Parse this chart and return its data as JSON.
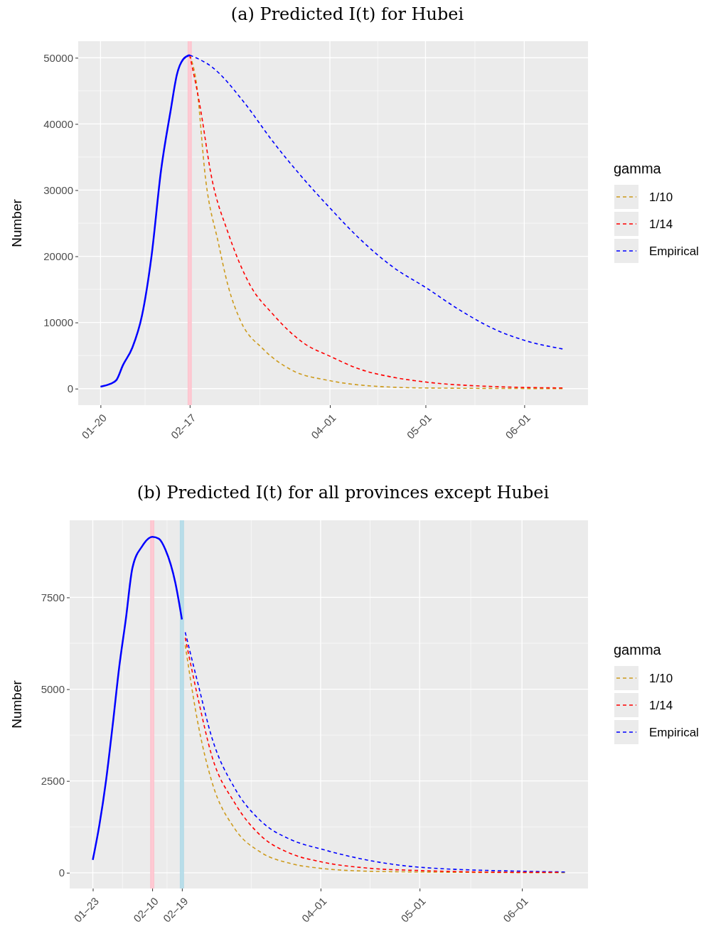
{
  "chart_data": [
    {
      "type": "line",
      "title": "(a) Predicted I(t) for Hubei",
      "ylabel": "Number",
      "legend_title": "gamma",
      "legend": "right",
      "grid": true,
      "marker": "none",
      "xlim": [
        "--01-13",
        "--06-21"
      ],
      "ylim": [
        -2500,
        52500
      ],
      "xticks": [
        {
          "value": "--01-20",
          "label": "01–20"
        },
        {
          "value": "--02-17",
          "label": "02–17"
        },
        {
          "value": "--04-01",
          "label": "04–01"
        },
        {
          "value": "--05-01",
          "label": "05–01"
        },
        {
          "value": "--06-01",
          "label": "06–01"
        }
      ],
      "yticks": [
        0,
        10000,
        20000,
        30000,
        40000,
        50000
      ],
      "ref_lines": [
        {
          "axis": "x",
          "value": "--02-17",
          "label": null,
          "color": "#ffc0cb"
        }
      ],
      "series": [
        {
          "color": "#0000ff",
          "line_style": "solid",
          "x": [
            "--01-20",
            "--01-23",
            "--01-25",
            "--01-27",
            "--01-30",
            "--02-02",
            "--02-05",
            "--02-08",
            "--02-11",
            "--02-13",
            "--02-15",
            "--02-17"
          ],
          "values": [
            300,
            700,
            1300,
            3500,
            6200,
            11000,
            20000,
            33000,
            42000,
            47500,
            49800,
            50400
          ]
        },
        {
          "name": "1/10",
          "color": "#cd9b1d",
          "line_style": "dashed",
          "x": [
            "--02-17",
            "--02-19",
            "--02-22",
            "--02-26",
            "--02-29",
            "--03-04",
            "--03-11",
            "--03-20",
            "--04-01",
            "--04-14",
            "--05-01",
            "--06-13"
          ],
          "values": [
            50400,
            46500,
            31600,
            22000,
            15600,
            10200,
            6000,
            2800,
            1200,
            400,
            100,
            0
          ]
        },
        {
          "name": "1/14",
          "color": "#ff0000",
          "line_style": "dashed",
          "x": [
            "--02-17",
            "--02-20",
            "--02-24",
            "--02-29",
            "--03-07",
            "--03-14",
            "--03-24",
            "--04-01",
            "--04-10",
            "--04-21",
            "--05-01",
            "--05-23",
            "--06-13"
          ],
          "values": [
            50400,
            43300,
            31600,
            23600,
            15600,
            11300,
            6800,
            4900,
            3000,
            1700,
            1000,
            300,
            100
          ]
        },
        {
          "name": "Empirical",
          "color": "#0000ff",
          "line_style": "dashed",
          "x": [
            "--02-17",
            "--02-24",
            "--03-05",
            "--03-14",
            "--03-23",
            "--04-01",
            "--04-10",
            "--04-21",
            "--05-01",
            "--05-12",
            "--05-23",
            "--06-01",
            "--06-13"
          ],
          "values": [
            50400,
            48600,
            43300,
            37400,
            32100,
            27300,
            22800,
            18300,
            15300,
            11800,
            8900,
            7300,
            6000
          ]
        }
      ]
    },
    {
      "type": "line",
      "title": "(b) Predicted I(t) for all provinces except Hubei",
      "ylabel": "Number",
      "legend_title": "gamma",
      "legend": "right",
      "grid": true,
      "marker": "none",
      "xlim": [
        "--01-16",
        "--06-21"
      ],
      "ylim": [
        -430,
        9600
      ],
      "xticks": [
        {
          "value": "--01-23",
          "label": "01–23"
        },
        {
          "value": "--02-10",
          "label": "02–10"
        },
        {
          "value": "--02-19",
          "label": "02–19"
        },
        {
          "value": "--04-01",
          "label": "04–01"
        },
        {
          "value": "--05-01",
          "label": "05–01"
        },
        {
          "value": "--06-01",
          "label": "06–01"
        }
      ],
      "yticks": [
        0,
        2500,
        5000,
        7500
      ],
      "ref_lines": [
        {
          "axis": "x",
          "value": "--02-10",
          "label": null,
          "color": "#ffc0cb"
        },
        {
          "axis": "x",
          "value": "--02-19",
          "label": null,
          "color": "#add8e6"
        }
      ],
      "series": [
        {
          "color": "#0000ff",
          "line_style": "solid",
          "x": [
            "--01-23",
            "--01-25",
            "--01-27",
            "--01-29",
            "--01-31",
            "--02-02",
            "--02-04",
            "--02-07",
            "--02-10",
            "--02-12",
            "--02-14",
            "--02-17",
            "--02-19"
          ],
          "values": [
            350,
            1300,
            2500,
            4000,
            5600,
            6900,
            8300,
            8900,
            9150,
            9100,
            8800,
            7900,
            6900
          ]
        },
        {
          "name": "1/10",
          "color": "#cd9b1d",
          "line_style": "dashed",
          "x": [
            "--02-20",
            "--02-24",
            "--02-28",
            "--03-06",
            "--03-14",
            "--03-23",
            "--04-01",
            "--04-16",
            "--05-01",
            "--06-14"
          ],
          "values": [
            6200,
            4000,
            2500,
            1200,
            550,
            250,
            120,
            40,
            20,
            0
          ]
        },
        {
          "name": "1/14",
          "color": "#ff0000",
          "line_style": "dashed",
          "x": [
            "--02-20",
            "--02-24",
            "--02-28",
            "--03-06",
            "--03-14",
            "--03-23",
            "--04-01",
            "--04-16",
            "--05-01",
            "--06-01",
            "--06-12"
          ],
          "values": [
            6400,
            4700,
            3200,
            1900,
            1000,
            520,
            300,
            120,
            60,
            10,
            10
          ]
        },
        {
          "name": "Empirical",
          "color": "#0000ff",
          "line_style": "dashed",
          "x": [
            "--02-20",
            "--02-24",
            "--02-28",
            "--03-06",
            "--03-14",
            "--03-23",
            "--04-01",
            "--04-16",
            "--05-01",
            "--06-01",
            "--06-14"
          ],
          "values": [
            6550,
            5100,
            3700,
            2300,
            1400,
            900,
            650,
            330,
            150,
            40,
            20
          ]
        }
      ]
    }
  ]
}
